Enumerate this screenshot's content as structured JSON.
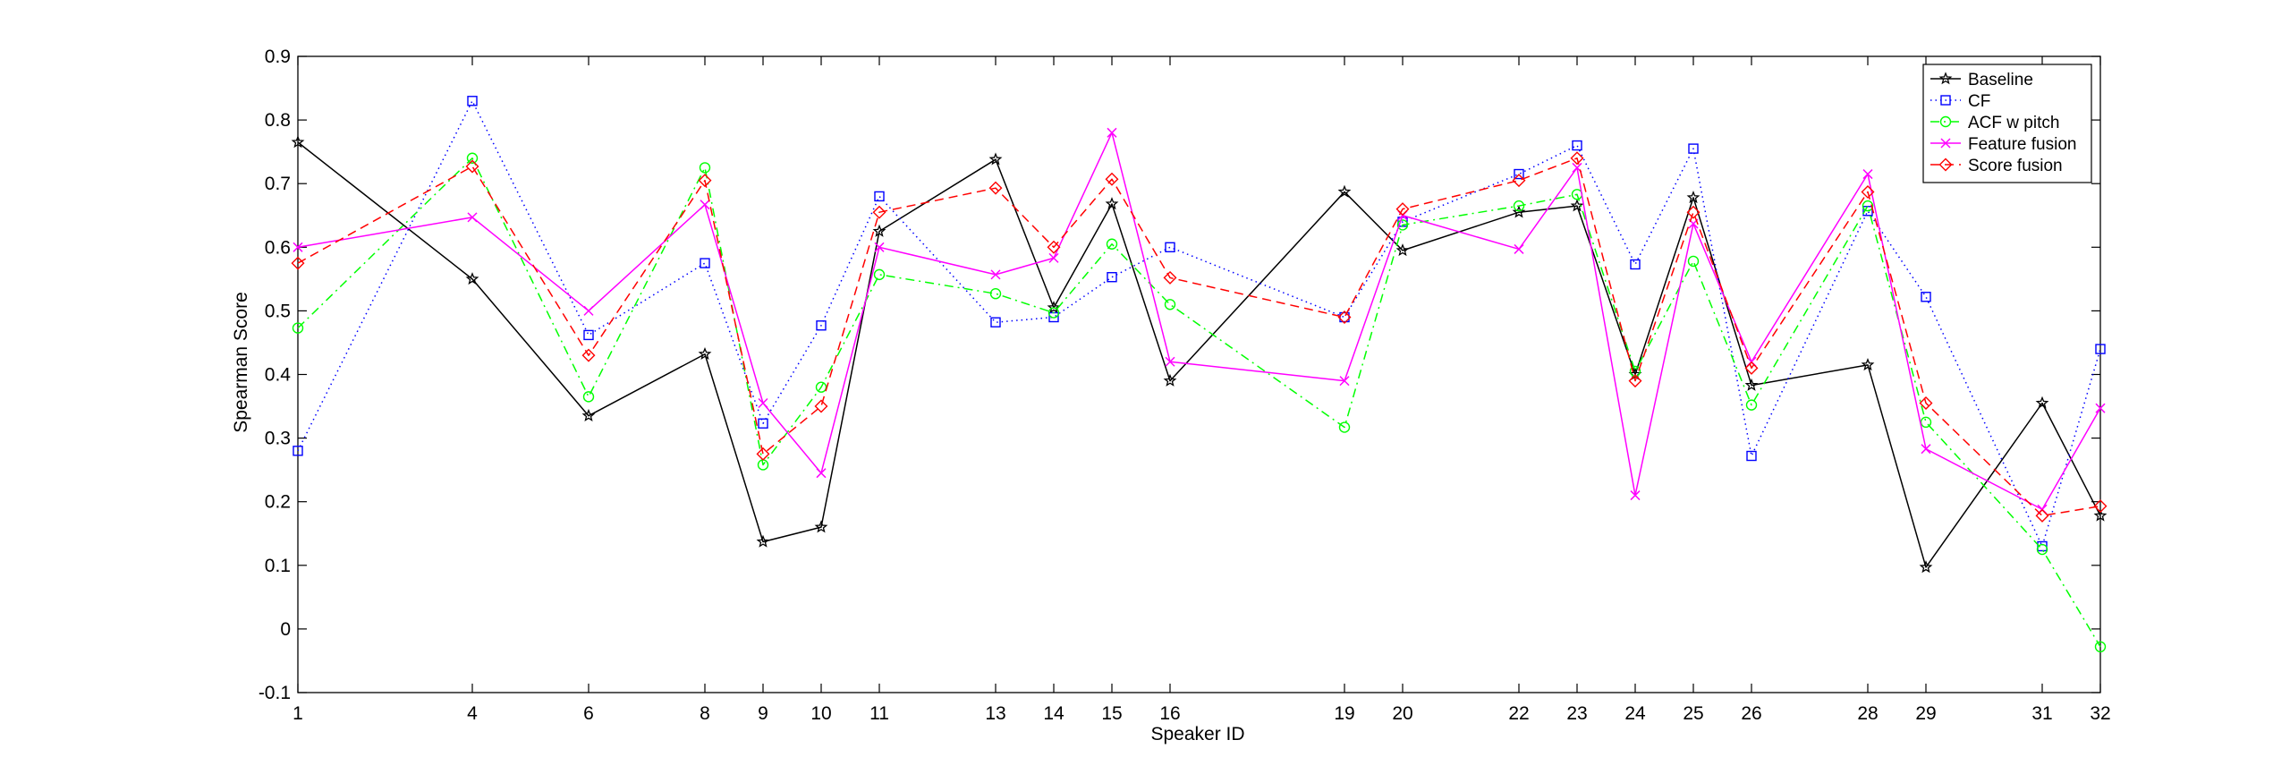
{
  "chart_data": {
    "type": "line",
    "title": "",
    "xlabel": "Speaker ID",
    "ylabel": "Spearman Score",
    "xlim": [
      1,
      32
    ],
    "ylim": [
      -0.1,
      0.9
    ],
    "grid": false,
    "legend_position": "top-right",
    "categories": [
      "1",
      "4",
      "6",
      "8",
      "9",
      "10",
      "11",
      "13",
      "14",
      "15",
      "16",
      "19",
      "20",
      "22",
      "23",
      "24",
      "25",
      "26",
      "28",
      "29",
      "31",
      "32"
    ],
    "x": [
      1,
      4,
      6,
      8,
      9,
      10,
      11,
      13,
      14,
      15,
      16,
      19,
      20,
      22,
      23,
      24,
      25,
      26,
      28,
      29,
      31,
      32
    ],
    "yticks": [
      "-0.1",
      "0",
      "0.1",
      "0.2",
      "0.3",
      "0.4",
      "0.5",
      "0.6",
      "0.7",
      "0.8",
      "0.9"
    ],
    "series": [
      {
        "name": "Baseline",
        "color": "#000000",
        "line_style": "solid",
        "marker": "pentagram",
        "values": [
          0.765,
          0.55,
          0.335,
          0.432,
          0.137,
          0.16,
          0.625,
          0.738,
          0.505,
          0.668,
          0.39,
          0.687,
          0.595,
          0.655,
          0.665,
          0.4,
          0.678,
          0.383,
          0.415,
          0.097,
          0.355,
          0.178
        ]
      },
      {
        "name": "CF",
        "color": "#0000ff",
        "line_style": "dotted",
        "marker": "square",
        "values": [
          0.28,
          0.83,
          0.462,
          0.575,
          0.323,
          0.477,
          0.68,
          0.482,
          0.49,
          0.553,
          0.6,
          0.49,
          0.64,
          0.715,
          0.76,
          0.573,
          0.755,
          0.272,
          0.657,
          0.522,
          0.13,
          0.44
        ]
      },
      {
        "name": "ACF w pitch",
        "color": "#00ff00",
        "line_style": "dashdot",
        "marker": "circle",
        "values": [
          0.473,
          0.74,
          0.365,
          0.725,
          0.258,
          0.38,
          0.557,
          0.527,
          0.497,
          0.605,
          0.51,
          0.317,
          0.635,
          0.665,
          0.683,
          0.405,
          0.578,
          0.352,
          0.665,
          0.325,
          0.125,
          -0.028
        ]
      },
      {
        "name": "Feature fusion",
        "color": "#ff00ff",
        "line_style": "solid",
        "marker": "x",
        "values": [
          0.6,
          0.647,
          0.5,
          0.667,
          0.355,
          0.245,
          0.6,
          0.557,
          0.583,
          0.78,
          0.42,
          0.39,
          0.65,
          0.597,
          0.725,
          0.21,
          0.637,
          0.42,
          0.715,
          0.283,
          0.188,
          0.347
        ]
      },
      {
        "name": "Score fusion",
        "color": "#ff0000",
        "line_style": "dashed",
        "marker": "diamond",
        "values": [
          0.575,
          0.727,
          0.43,
          0.705,
          0.275,
          0.35,
          0.655,
          0.693,
          0.6,
          0.707,
          0.552,
          0.49,
          0.66,
          0.705,
          0.74,
          0.39,
          0.655,
          0.41,
          0.687,
          0.355,
          0.178,
          0.193
        ]
      }
    ]
  }
}
